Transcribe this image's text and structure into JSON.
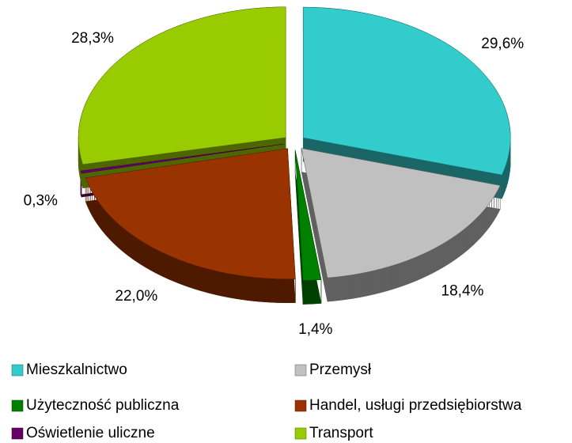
{
  "chart_data": {
    "type": "pie",
    "categories": [
      "Mieszkalnictwo",
      "Przemysł",
      "Użyteczność publiczna",
      "Handel, usługi przedsiębiorstwa",
      "Oświetlenie uliczne",
      "Transport"
    ],
    "values": [
      29.6,
      18.4,
      1.4,
      22.0,
      0.3,
      28.3
    ],
    "value_labels": [
      "29,6%",
      "18,4%",
      "1,4%",
      "22,0%",
      "0,3%",
      "28,3%"
    ],
    "colors": [
      "#33CCCC",
      "#C0C0C0",
      "#008000",
      "#993300",
      "#660066",
      "#99CC00"
    ],
    "legend": "bottom"
  }
}
